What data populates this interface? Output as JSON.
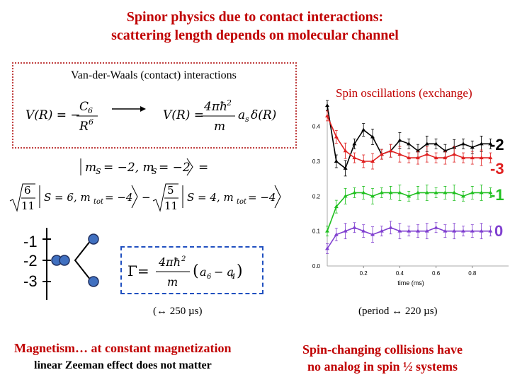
{
  "title": {
    "line1": "Spinor physics due to contact interactions:",
    "line2": "scattering length depends on molecular channel"
  },
  "vdw_label": "Van-der-Waals (contact) interactions",
  "levels": [
    "-1",
    "-2",
    "-3"
  ],
  "timing": {
    "left": "(↔ 250 µs)",
    "right": "(period ↔ 220 µs)"
  },
  "magnetism": {
    "title": "Magnetism… at constant magnetization",
    "subtitle": "linear Zeeman effect does not matter"
  },
  "spin_changing": {
    "line1": "Spin-changing collisions have",
    "line2": "no analog in spin ½ systems"
  },
  "chart_data": {
    "type": "line",
    "title": "Spin oscillations (exchange)",
    "xlabel": "time (ms)",
    "ylabel": "",
    "xlim": [
      0,
      1.0
    ],
    "ylim": [
      0,
      0.45
    ],
    "x_ticks": [
      "0.2",
      "0.4",
      "0.6",
      "0.8"
    ],
    "y_ticks": [
      "0.0",
      "0.1",
      "0.2",
      "0.3",
      "0.4"
    ],
    "series": [
      {
        "name": "-2",
        "color": "#000000",
        "x": [
          0.0,
          0.05,
          0.1,
          0.15,
          0.2,
          0.25,
          0.3,
          0.35,
          0.4,
          0.45,
          0.5,
          0.55,
          0.6,
          0.65,
          0.7,
          0.75,
          0.8,
          0.85,
          0.9
        ],
        "y": [
          0.46,
          0.3,
          0.28,
          0.35,
          0.39,
          0.37,
          0.32,
          0.33,
          0.36,
          0.35,
          0.33,
          0.35,
          0.35,
          0.33,
          0.34,
          0.35,
          0.34,
          0.35,
          0.35
        ]
      },
      {
        "name": "-3",
        "color": "#e02020",
        "x": [
          0.0,
          0.05,
          0.1,
          0.15,
          0.2,
          0.25,
          0.3,
          0.35,
          0.4,
          0.45,
          0.5,
          0.55,
          0.6,
          0.65,
          0.7,
          0.75,
          0.8,
          0.85,
          0.9
        ],
        "y": [
          0.43,
          0.37,
          0.33,
          0.31,
          0.3,
          0.3,
          0.32,
          0.33,
          0.32,
          0.31,
          0.31,
          0.32,
          0.31,
          0.31,
          0.32,
          0.31,
          0.31,
          0.31,
          0.31
        ]
      },
      {
        "name": "-1",
        "color": "#20c020",
        "x": [
          0.0,
          0.05,
          0.1,
          0.15,
          0.2,
          0.25,
          0.3,
          0.35,
          0.4,
          0.45,
          0.5,
          0.55,
          0.6,
          0.65,
          0.7,
          0.75,
          0.8,
          0.85,
          0.9
        ],
        "y": [
          0.1,
          0.17,
          0.2,
          0.21,
          0.21,
          0.2,
          0.21,
          0.21,
          0.21,
          0.2,
          0.21,
          0.21,
          0.21,
          0.21,
          0.21,
          0.2,
          0.21,
          0.21,
          0.21
        ]
      },
      {
        "name": "0",
        "color": "#8040d0",
        "x": [
          0.0,
          0.05,
          0.1,
          0.15,
          0.2,
          0.25,
          0.3,
          0.35,
          0.4,
          0.45,
          0.5,
          0.55,
          0.6,
          0.65,
          0.7,
          0.75,
          0.8,
          0.85,
          0.9
        ],
        "y": [
          0.05,
          0.09,
          0.1,
          0.11,
          0.1,
          0.09,
          0.1,
          0.11,
          0.1,
          0.1,
          0.1,
          0.1,
          0.11,
          0.1,
          0.1,
          0.1,
          0.1,
          0.1,
          0.1
        ]
      }
    ]
  }
}
